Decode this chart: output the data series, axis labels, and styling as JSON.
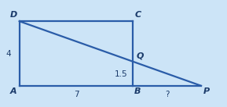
{
  "A": [
    0,
    0
  ],
  "B": [
    7,
    0
  ],
  "C": [
    7,
    4
  ],
  "D": [
    0,
    4
  ],
  "Q": [
    7,
    1.5
  ],
  "P": [
    11.2,
    0
  ],
  "rect_fill": "#cce4f7",
  "rect_edge": "#2a5ca8",
  "bg_color": "#cce4f7",
  "label_color": "#1a3a6a",
  "label_D": "D",
  "label_C": "C",
  "label_A": "A",
  "label_B": "B",
  "label_P": "P",
  "label_Q": "Q",
  "dim_AB": "7",
  "dim_AD": "4",
  "dim_BQ": "1.5",
  "dim_BP": "?",
  "xlim": [
    -1.2,
    12.8
  ],
  "ylim": [
    -0.9,
    4.9
  ],
  "figsize": [
    2.89,
    1.37
  ],
  "dpi": 100,
  "lw": 1.6,
  "fs_label": 8.0,
  "fs_dim": 7.5
}
